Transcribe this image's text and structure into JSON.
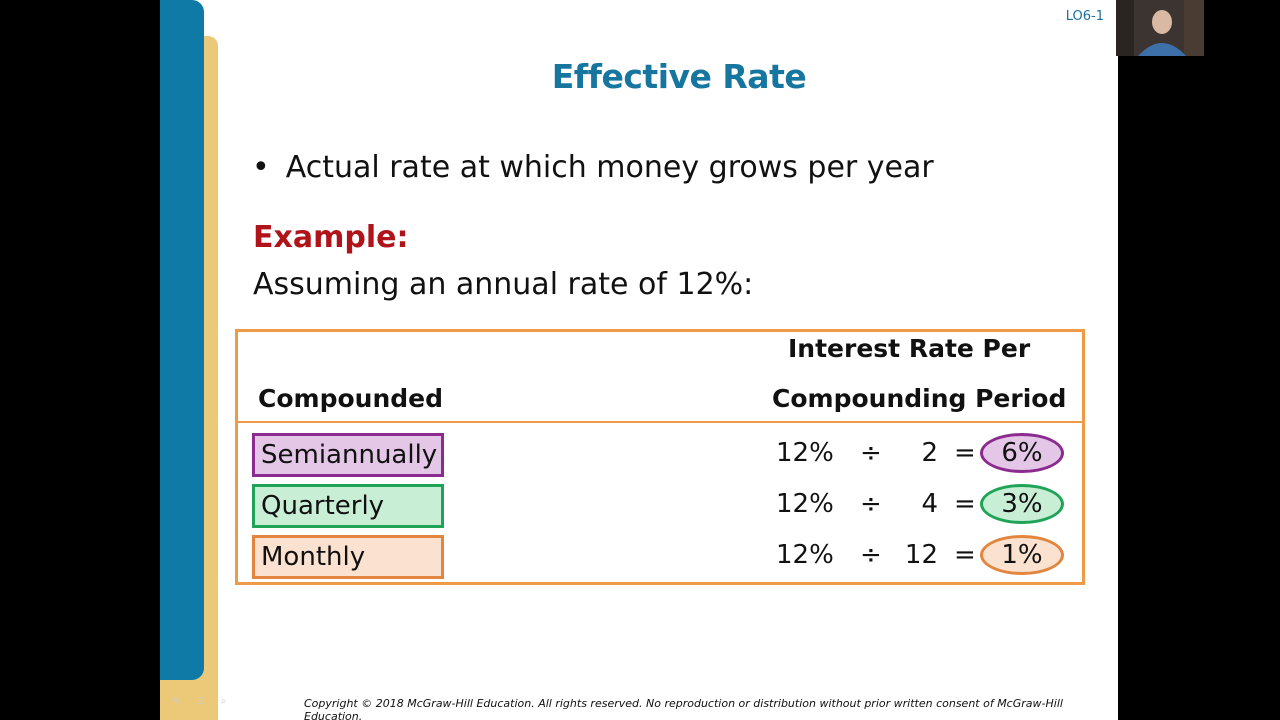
{
  "slide": {
    "lo_tag": "LO6-1",
    "title": "Effective Rate",
    "bullet": "Actual rate at which money grows per year",
    "example_label": "Example:",
    "assumption": "Assuming an annual rate of 12%:",
    "table": {
      "header_left": "Compounded",
      "header_right_line1": "Interest Rate Per",
      "header_right_line2": "Compounding Period",
      "rows": [
        {
          "period": "Semiannually",
          "rate": "12%",
          "op": "÷",
          "n": "2",
          "eq": "=",
          "result": "6%",
          "color": "#8b2a8f",
          "fill": "#e4c6e6"
        },
        {
          "period": "Quarterly",
          "rate": "12%",
          "op": "÷",
          "n": "4",
          "eq": "=",
          "result": "3%",
          "color": "#1fa457",
          "fill": "#c9eed6"
        },
        {
          "period": "Monthly",
          "rate": "12%",
          "op": "÷",
          "n": "12",
          "eq": "=",
          "result": "1%",
          "color": "#e2853e",
          "fill": "#fbe1cf"
        }
      ]
    },
    "copyright": "Copyright © 2018 McGraw-Hill Education. All rights reserved. No reproduction or distribution without prior written consent of McGraw-Hill Education."
  },
  "colors": {
    "title": "#16769f",
    "example": "#b0141a",
    "table_border": "#ee9a48",
    "band_blue": "#0f7aa5",
    "band_gold": "#ecc978"
  },
  "icons": [
    "pen-icon",
    "zoom-icon",
    "search-icon"
  ]
}
